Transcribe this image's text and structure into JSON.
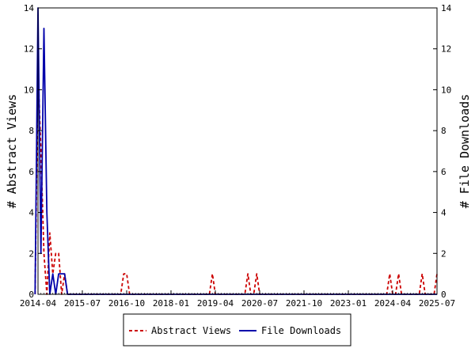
{
  "chart_data": {
    "type": "line",
    "title": "",
    "ylabel_left": "# Abstract Views",
    "ylabel_right": "# File Downloads",
    "ylim": [
      0,
      14
    ],
    "yticks": [
      0,
      2,
      4,
      6,
      8,
      10,
      12,
      14
    ],
    "xlim": [
      "2014-04",
      "2025-07"
    ],
    "xticks": [
      "2014-04",
      "2015-07",
      "2016-10",
      "2018-01",
      "2019-04",
      "2020-07",
      "2021-10",
      "2023-01",
      "2024-04",
      "2025-07"
    ],
    "grid": false,
    "legend_position": "bottom",
    "series": [
      {
        "name": "Abstract Views",
        "axis": "left",
        "color": "#cc0000",
        "style": "dashed",
        "x": [
          "2014-03",
          "2014-04",
          "2014-05",
          "2014-06",
          "2014-07",
          "2014-08",
          "2014-09",
          "2014-10",
          "2014-11",
          "2014-12",
          "2015-01",
          "2015-02",
          "2015-03",
          "2015-04",
          "2015-05",
          "2015-06",
          "2015-07",
          "2015-08",
          "2015-09",
          "2016-08",
          "2016-09",
          "2016-10",
          "2016-11",
          "2016-12",
          "2019-02",
          "2019-03",
          "2019-04",
          "2020-02",
          "2020-03",
          "2020-04",
          "2020-05",
          "2020-06",
          "2020-07",
          "2024-02",
          "2024-03",
          "2024-04",
          "2024-05",
          "2024-06",
          "2024-07",
          "2025-01",
          "2025-02",
          "2025-03",
          "2025-06",
          "2025-07"
        ],
        "values": [
          0,
          11,
          7,
          2,
          0,
          3,
          1,
          2,
          2,
          0,
          1,
          0,
          0,
          0,
          0,
          0,
          0,
          0,
          0,
          0,
          1,
          1,
          0,
          0,
          0,
          1,
          0,
          0,
          1,
          0,
          0,
          1,
          0,
          0,
          1,
          0,
          0,
          1,
          0,
          0,
          1,
          0,
          0,
          1
        ]
      },
      {
        "name": "File Downloads",
        "axis": "right",
        "color": "#0000aa",
        "style": "solid",
        "x": [
          "2014-03",
          "2014-04",
          "2014-05",
          "2014-06",
          "2014-07",
          "2014-08",
          "2014-09",
          "2014-10",
          "2014-11",
          "2014-12",
          "2015-01",
          "2015-02",
          "2015-03",
          "2015-04",
          "2025-07"
        ],
        "values": [
          0,
          14,
          2,
          13,
          4,
          0,
          1,
          0,
          1,
          1,
          1,
          0,
          0,
          0,
          0
        ]
      }
    ]
  }
}
